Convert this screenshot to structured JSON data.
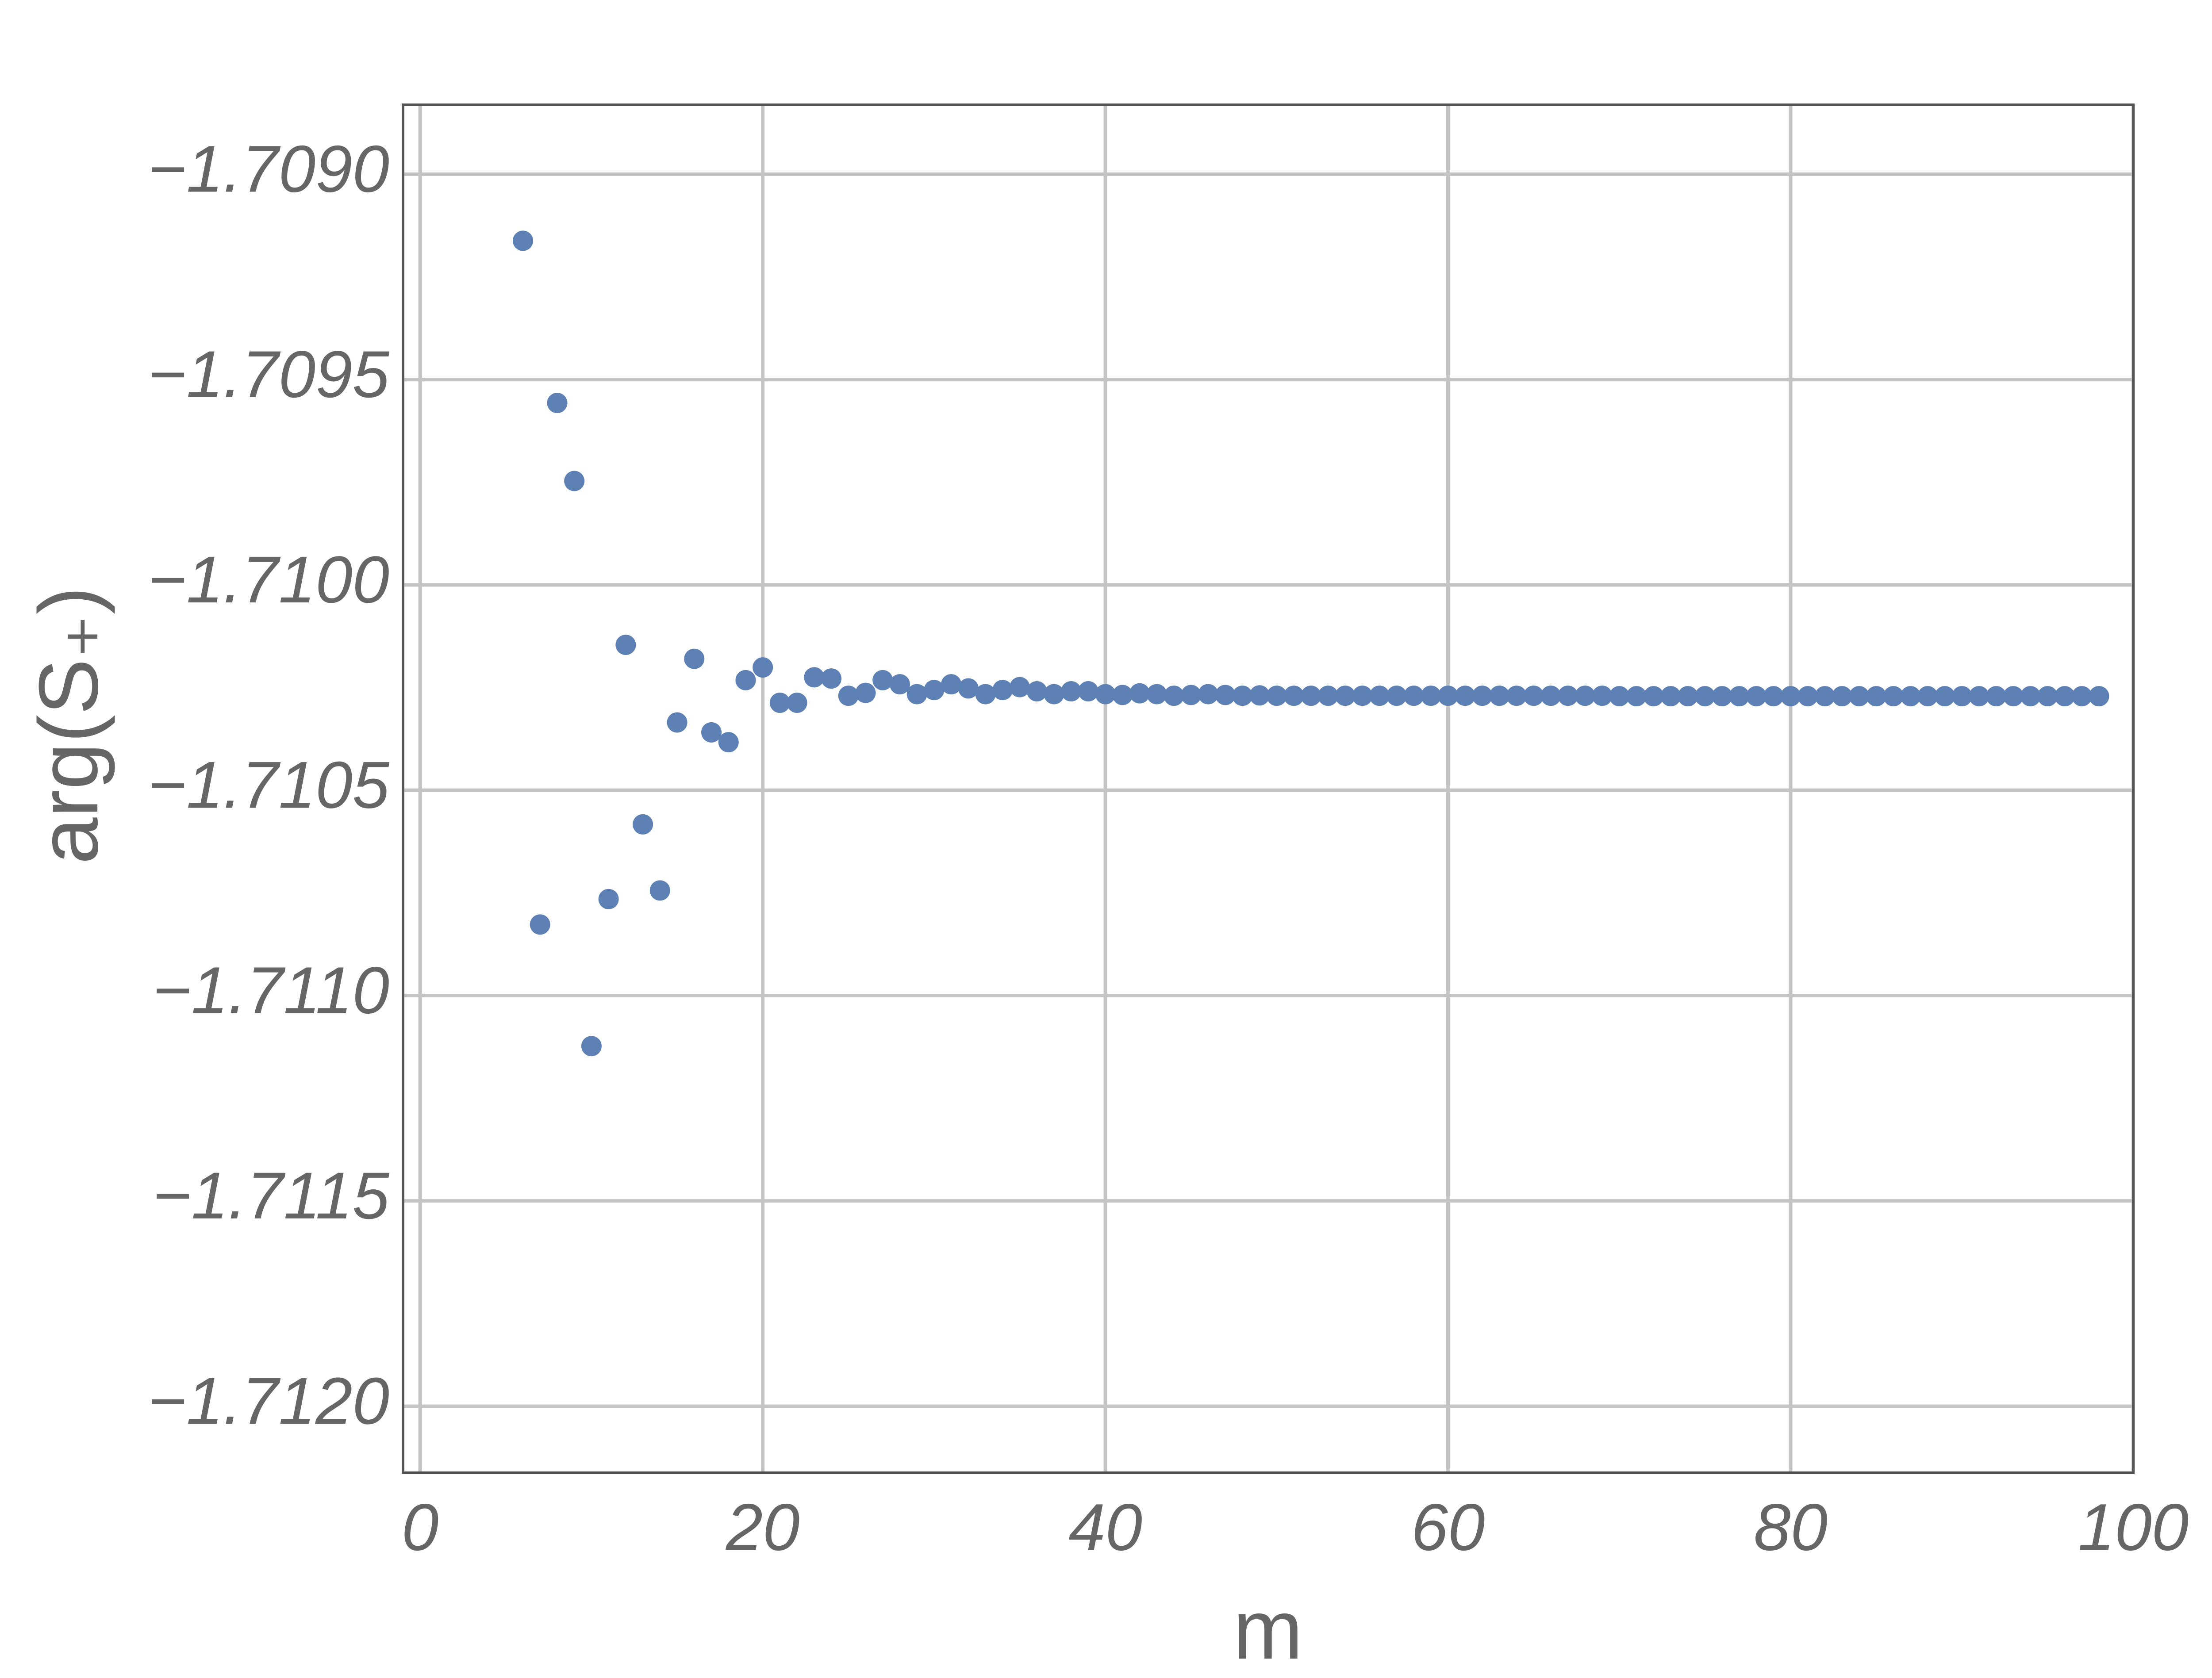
{
  "chart_data": {
    "type": "scatter",
    "x_label": "m",
    "y_label": "arg(S₊)",
    "color": "#5e81b5",
    "grid": true,
    "xlim": [
      -1,
      100
    ],
    "ylim": [
      -1.708831,
      -1.712162
    ],
    "xticks": [
      0,
      20,
      40,
      60,
      80,
      100
    ],
    "yticks": [
      {
        "value": -1.709,
        "label": "−1.7090"
      },
      {
        "value": -1.7095,
        "label": "−1.7095"
      },
      {
        "value": -1.71,
        "label": "−1.7100"
      },
      {
        "value": -1.7105,
        "label": "−1.7105"
      },
      {
        "value": -1.711,
        "label": "−1.7110"
      },
      {
        "value": -1.7115,
        "label": "−1.7115"
      },
      {
        "value": -1.712,
        "label": "−1.7120"
      }
    ],
    "x": [
      6,
      7,
      8,
      9,
      10,
      11,
      12,
      13,
      14,
      15,
      16,
      17,
      18,
      19,
      20,
      21,
      22,
      23,
      24,
      25,
      26,
      27,
      28,
      29,
      30,
      31,
      32,
      33,
      34,
      35,
      36,
      37,
      38,
      39,
      40,
      41,
      42,
      43,
      44,
      45,
      46,
      47,
      48,
      49,
      50,
      51,
      52,
      53,
      54,
      55,
      56,
      57,
      58,
      59,
      60,
      61,
      62,
      63,
      64,
      65,
      66,
      67,
      68,
      69,
      70,
      71,
      72,
      73,
      74,
      75,
      76,
      77,
      78,
      79,
      80,
      81,
      82,
      83,
      84,
      85,
      86,
      87,
      88,
      89,
      90,
      91,
      92,
      93,
      94,
      95,
      96,
      97,
      98
    ],
    "values": [
      -1.709162,
      -1.710827,
      -1.709557,
      -1.709747,
      -1.711123,
      -1.710765,
      -1.710146,
      -1.710583,
      -1.710744,
      -1.710335,
      -1.71018,
      -1.710359,
      -1.710383,
      -1.710232,
      -1.710201,
      -1.710287,
      -1.710287,
      -1.710225,
      -1.710228,
      -1.71027,
      -1.710263,
      -1.710232,
      -1.710242,
      -1.710266,
      -1.710256,
      -1.710242,
      -1.710252,
      -1.710266,
      -1.710256,
      -1.710249,
      -1.710259,
      -1.710266,
      -1.710259,
      -1.710259,
      -1.710266,
      -1.710268,
      -1.710264,
      -1.710266,
      -1.71027,
      -1.710268,
      -1.710266,
      -1.710268,
      -1.71027,
      -1.710269,
      -1.71027,
      -1.71027,
      -1.71027,
      -1.71027,
      -1.71027,
      -1.71027,
      -1.71027,
      -1.71027,
      -1.71027,
      -1.71027,
      -1.71027,
      -1.71027,
      -1.71027,
      -1.71027,
      -1.71027,
      -1.71027,
      -1.71027,
      -1.71027,
      -1.71027,
      -1.71027,
      -1.710271,
      -1.710271,
      -1.710271,
      -1.710271,
      -1.710271,
      -1.710271,
      -1.710271,
      -1.710271,
      -1.710271,
      -1.710271,
      -1.710271,
      -1.710271,
      -1.710271,
      -1.710271,
      -1.710271,
      -1.710271,
      -1.710271,
      -1.710271,
      -1.710271,
      -1.710271,
      -1.710271,
      -1.710271,
      -1.710271,
      -1.710271,
      -1.710271,
      -1.710271,
      -1.710271,
      -1.710271,
      -1.710271
    ]
  }
}
